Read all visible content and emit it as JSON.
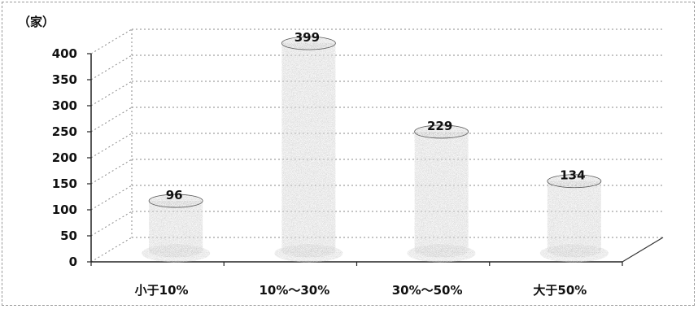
{
  "chart_data": {
    "type": "bar",
    "title": "",
    "unit_label": "（家）",
    "categories": [
      "小于10%",
      "10%～30%",
      "30%～50%",
      "大于50%"
    ],
    "values": [
      96,
      399,
      229,
      134
    ],
    "ylim": [
      0,
      400
    ],
    "yticks": [
      "0",
      "50",
      "100",
      "150",
      "200",
      "250",
      "300",
      "350",
      "400"
    ],
    "style": "3d-cylinder",
    "grid": true,
    "bar_color": "#9a9a9a"
  }
}
